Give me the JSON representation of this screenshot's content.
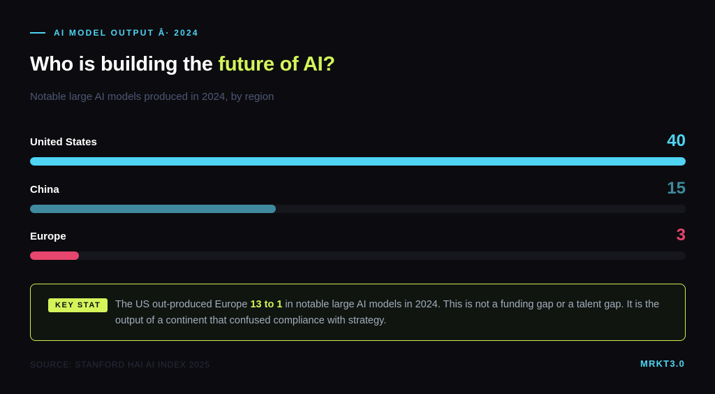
{
  "eyebrow": "AI MODEL OUTPUT Â· 2024",
  "title": {
    "prefix": "Who is building the ",
    "highlight": "future of AI?"
  },
  "subtitle": "Notable large AI models produced in 2024, by region",
  "colors": {
    "background": "#0c0c10",
    "accent_cyan": "#4fd4f4",
    "accent_lime": "#d4f45a",
    "china_teal": "#3f8a9e",
    "europe_pink": "#e8456f",
    "track": "#16161d"
  },
  "chart_data": {
    "type": "bar",
    "orientation": "horizontal",
    "categories": [
      "United States",
      "China",
      "Europe"
    ],
    "values": [
      40,
      15,
      3
    ],
    "colors": [
      "#4fd4f4",
      "#3f8a9e",
      "#e8456f"
    ],
    "xlim": [
      0,
      40
    ],
    "grid": false
  },
  "callout": {
    "badge": "KEY STAT",
    "text_before": "The US out-produced Europe ",
    "highlight": "13 to 1",
    "text_after": " in notable large AI models in 2024. This is not a funding gap or a talent gap. It is the output of a continent that confused compliance with strategy."
  },
  "footer": {
    "source": "SOURCE: STANFORD HAI AI INDEX 2025",
    "brand": "MRKT3.0"
  }
}
